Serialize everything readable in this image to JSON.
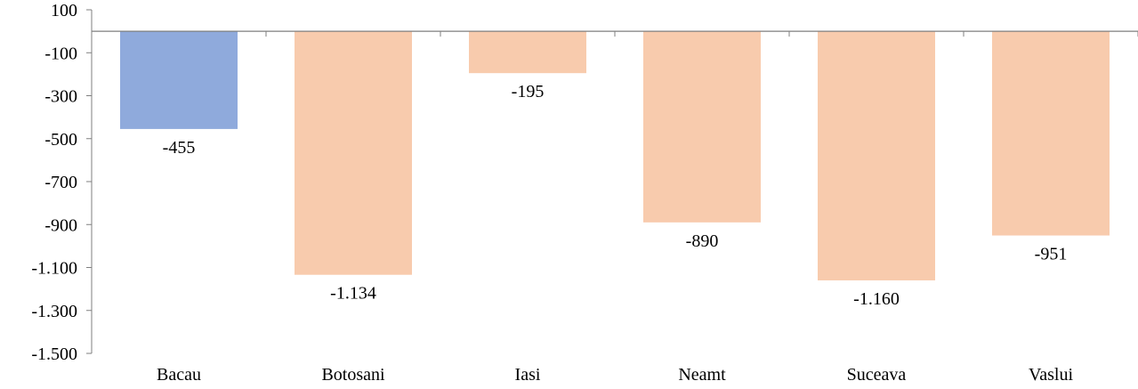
{
  "chart_data": {
    "type": "bar",
    "title": "",
    "xlabel": "",
    "ylabel": "",
    "categories": [
      "Bacau",
      "Botosani",
      "Iasi",
      "Neamt",
      "Suceava",
      "Vaslui"
    ],
    "values": [
      -455,
      -1134,
      -195,
      -890,
      -1160,
      -951
    ],
    "value_labels": [
      "-455",
      "-1.134",
      "-195",
      "-890",
      "-1.160",
      "-951"
    ],
    "ylim": [
      -1500,
      100
    ],
    "yticks": [
      100,
      -100,
      -300,
      -500,
      -700,
      -900,
      -1100,
      -1300,
      -1500
    ],
    "ytick_labels": [
      "100",
      "-100",
      "-300",
      "-500",
      "-700",
      "-900",
      "-1.100",
      "-1.300",
      "-1.500"
    ],
    "grid": false,
    "legend": "none",
    "colors": {
      "highlight": "#8faadc",
      "default": "#f8cbad",
      "axis": "#7f7f7f"
    },
    "highlight_index": 0
  }
}
